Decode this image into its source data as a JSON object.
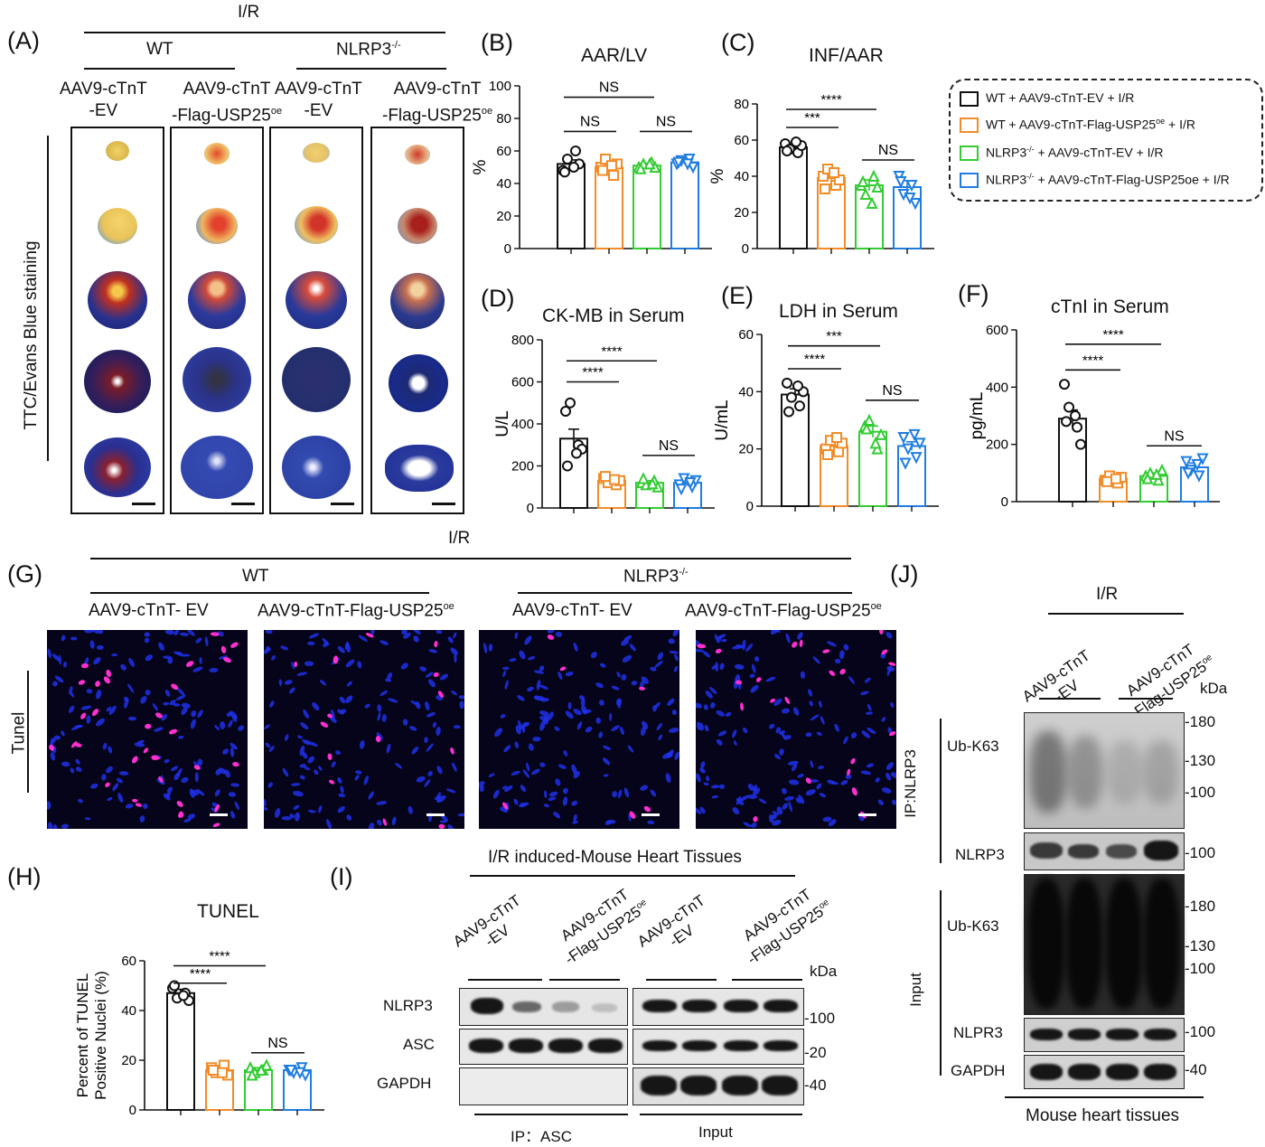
{
  "panel_A": {
    "label": "(A)",
    "ir": "I/R",
    "wt": "WT",
    "nlrp3": "NLRP3",
    "nlrp3_sup": "-/-",
    "col_labels": [
      {
        "line1": "AAV9-cTnT",
        "line2": "-EV",
        "sup": ""
      },
      {
        "line1": "AAV9-cTnT",
        "line2": "-Flag-USP25",
        "sup": "oe"
      },
      {
        "line1": "AAV9-cTnT",
        "line2": "-EV",
        "sup": ""
      },
      {
        "line1": "AAV9-cTnT",
        "line2": "-Flag-USP25",
        "sup": "oe"
      }
    ],
    "side_label": "TTC/Evans Blue staining"
  },
  "legend": {
    "colors": [
      "#111111",
      "#f28c28",
      "#33cc33",
      "#1f7de0"
    ],
    "items": [
      {
        "pre": "WT + AAV9-cTnT-EV + I/R",
        "sup": "",
        "post": ""
      },
      {
        "pre": "WT + AAV9-cTnT-Flag-USP25",
        "sup": "oe",
        "post": " + I/R"
      },
      {
        "pre": "NLRP3",
        "sup": "-/-",
        "post": " + AAV9-cTnT-EV + I/R"
      },
      {
        "pre": "NLRP3",
        "sup": "-/-",
        "post": " + AAV9-cTnT-Flag-USP25oe + I/R"
      }
    ]
  },
  "chart_data": [
    {
      "id": "B",
      "label": "(B)",
      "type": "bar",
      "title": "AAR/LV",
      "ylabel": "%",
      "ylim": [
        0,
        100
      ],
      "yticks": [
        0,
        20,
        40,
        60,
        80,
        100
      ],
      "values": [
        52,
        50,
        51,
        53
      ],
      "errors": [
        2.5,
        2,
        1.5,
        1.5
      ],
      "points": [
        [
          48,
          55,
          60,
          52,
          47,
          50
        ],
        [
          50,
          55,
          45,
          52,
          48,
          51
        ],
        [
          50,
          52,
          53,
          50,
          49,
          52
        ],
        [
          52,
          54,
          55,
          50,
          53,
          52
        ]
      ],
      "sig": [
        {
          "text": "NS",
          "from": 0,
          "to": 2,
          "y": 93
        },
        {
          "text": "NS",
          "from": 0,
          "to": 1,
          "y": 72
        },
        {
          "text": "NS",
          "from": 2,
          "to": 3,
          "y": 72
        }
      ]
    },
    {
      "id": "C",
      "label": "(C)",
      "type": "bar",
      "title": "INF/AAR",
      "ylabel": "%",
      "ylim": [
        0,
        80
      ],
      "yticks": [
        0,
        20,
        40,
        60,
        80
      ],
      "values": [
        56,
        39,
        35,
        34
      ],
      "errors": [
        2,
        3,
        3,
        3.5
      ],
      "points": [
        [
          58,
          55,
          53,
          57,
          54,
          59
        ],
        [
          40,
          44,
          35,
          38,
          33,
          42
        ],
        [
          35,
          30,
          40,
          34,
          37,
          25
        ],
        [
          40,
          30,
          35,
          25,
          37,
          28
        ]
      ],
      "sig": [
        {
          "text": "****",
          "from": 0,
          "to": 2,
          "y": 77
        },
        {
          "text": "***",
          "from": 0,
          "to": 1,
          "y": 67
        },
        {
          "text": "NS",
          "from": 2,
          "to": 3,
          "y": 49
        }
      ]
    },
    {
      "id": "D",
      "label": "(D)",
      "type": "bar",
      "title": "CK-MB in Serum",
      "ylabel": "U/L",
      "ylim": [
        0,
        800
      ],
      "yticks": [
        0,
        200,
        400,
        600,
        800
      ],
      "values": [
        330,
        130,
        120,
        120
      ],
      "errors": [
        45,
        10,
        10,
        15
      ],
      "points": [
        [
          460,
          500,
          300,
          280,
          200,
          260
        ],
        [
          140,
          120,
          110,
          130,
          150,
          135
        ],
        [
          120,
          110,
          130,
          100,
          140,
          115
        ],
        [
          110,
          140,
          100,
          130,
          90,
          120
        ]
      ],
      "sig": [
        {
          "text": "****",
          "from": 0,
          "to": 2,
          "y": 700
        },
        {
          "text": "****",
          "from": 0,
          "to": 1,
          "y": 600
        },
        {
          "text": "NS",
          "from": 2,
          "to": 3,
          "y": 250
        }
      ]
    },
    {
      "id": "E",
      "label": "(E)",
      "type": "bar",
      "title": "LDH in Serum",
      "ylabel": "U/mL",
      "ylim": [
        0,
        60
      ],
      "yticks": [
        0,
        20,
        40,
        60
      ],
      "values": [
        39,
        21,
        26,
        21
      ],
      "errors": [
        2,
        1.5,
        2,
        1.5
      ],
      "points": [
        [
          43,
          38,
          35,
          40,
          33,
          42
        ],
        [
          20,
          23,
          19,
          22,
          18,
          24
        ],
        [
          28,
          30,
          20,
          25,
          27,
          22
        ],
        [
          24,
          20,
          17,
          22,
          15,
          25
        ]
      ],
      "sig": [
        {
          "text": "***",
          "from": 0,
          "to": 2,
          "y": 56
        },
        {
          "text": "****",
          "from": 0,
          "to": 1,
          "y": 48
        },
        {
          "text": "NS",
          "from": 2,
          "to": 3,
          "y": 37
        }
      ]
    },
    {
      "id": "F",
      "label": "(F)",
      "type": "bar",
      "title": "cTnI in Serum",
      "ylabel": "pg/mL",
      "ylim": [
        0,
        600
      ],
      "yticks": [
        0,
        200,
        400,
        600
      ],
      "values": [
        290,
        80,
        90,
        120
      ],
      "errors": [
        30,
        10,
        10,
        15
      ],
      "points": [
        [
          410,
          330,
          260,
          200,
          280,
          300
        ],
        [
          75,
          90,
          65,
          85,
          70,
          80
        ],
        [
          90,
          100,
          75,
          110,
          80,
          95
        ],
        [
          140,
          110,
          90,
          150,
          100,
          130
        ]
      ],
      "sig": [
        {
          "text": "****",
          "from": 0,
          "to": 2,
          "y": 550
        },
        {
          "text": "****",
          "from": 0,
          "to": 1,
          "y": 460
        },
        {
          "text": "NS",
          "from": 2,
          "to": 3,
          "y": 195
        }
      ]
    },
    {
      "id": "H",
      "label": "(H)",
      "type": "bar",
      "title": "TUNEL",
      "ylabel": "Percent of TUNEL Positive Nuclei (%)",
      "ylim": [
        0,
        60
      ],
      "yticks": [
        0,
        20,
        40,
        60
      ],
      "values": [
        47,
        16,
        16,
        16
      ],
      "errors": [
        1.5,
        1,
        1,
        1
      ],
      "points": [
        [
          49,
          45,
          47,
          44,
          50,
          46
        ],
        [
          17,
          15,
          18,
          14,
          16,
          15
        ],
        [
          17,
          15,
          16,
          18,
          14,
          16
        ],
        [
          16,
          15,
          17,
          14,
          16,
          15
        ]
      ],
      "sig": [
        {
          "text": "****",
          "from": 0,
          "to": 2,
          "y": 58
        },
        {
          "text": "****",
          "from": 0,
          "to": 1,
          "y": 51
        },
        {
          "text": "NS",
          "from": 2,
          "to": 3,
          "y": 23
        }
      ]
    }
  ],
  "panel_G": {
    "label": "(G)",
    "ir": "I/R",
    "wt": "WT",
    "nlrp3": "NLRP3",
    "nlrp3_sup": "-/-",
    "cols": [
      {
        "text": "AAV9-cTnT- EV",
        "sup": ""
      },
      {
        "text": "AAV9-cTnT-Flag-USP25",
        "sup": "oe"
      },
      {
        "text": "AAV9-cTnT- EV",
        "sup": ""
      },
      {
        "text": "AAV9-cTnT-Flag-USP25",
        "sup": "oe"
      }
    ],
    "side_label": "Tunel"
  },
  "panel_I": {
    "label": "(I)",
    "title": "I/R induced-Mouse Heart Tissues",
    "cols": [
      {
        "line1": "AAV9-cTnT",
        "line2": "-EV",
        "sup": ""
      },
      {
        "line1": "AAV9-cTnT",
        "line2": "-Flag-USP25",
        "sup": "oe"
      },
      {
        "line1": "AAV9-cTnT",
        "line2": "-EV",
        "sup": ""
      },
      {
        "line1": "AAV9-cTnT",
        "line2": "-Flag-USP25",
        "sup": "oe"
      }
    ],
    "kda": "kDa",
    "rows": [
      "NLRP3",
      "ASC",
      "GAPDH"
    ],
    "markers": [
      "-100",
      "-20",
      "-40"
    ],
    "ip": "IP：ASC",
    "input": "Input"
  },
  "panel_J": {
    "label": "(J)",
    "ir": "I/R",
    "cols": [
      {
        "line1": "AAV9-cTnT",
        "line2": "-EV",
        "sup": ""
      },
      {
        "line1": "AAV9-cTnT",
        "line2": "-Flag-USP25",
        "sup": "oe"
      }
    ],
    "kda": "kDa",
    "ip_label": "IP:NLRP3",
    "input_label": "Input",
    "row_labels": [
      "Ub-K63",
      "NLRP3",
      "Ub-K63",
      "NLPR3",
      "GAPDH"
    ],
    "markers": [
      "-180",
      "-130",
      "-100",
      "-100",
      "-180",
      "-130",
      "-100",
      "-100",
      "-40"
    ],
    "footer": "Mouse heart tissues"
  }
}
